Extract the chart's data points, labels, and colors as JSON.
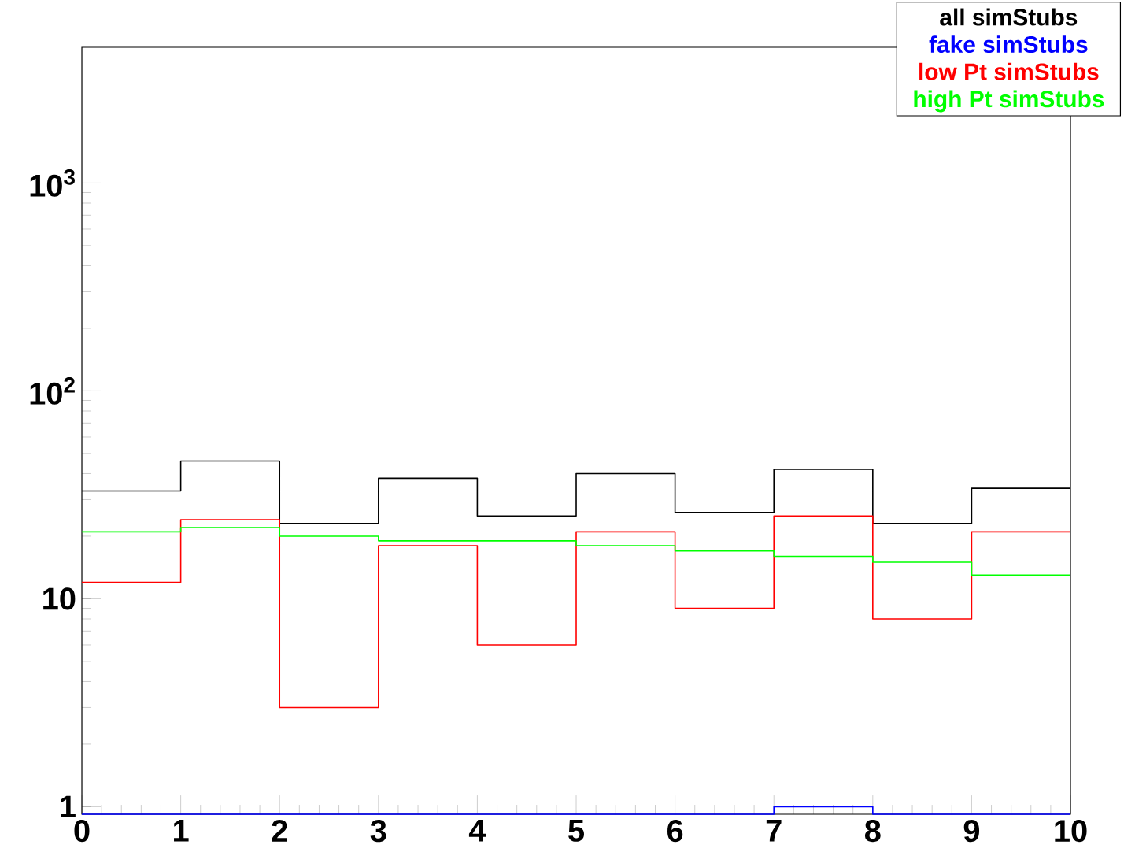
{
  "chart_data": {
    "type": "histogram",
    "bins": [
      0,
      1,
      2,
      3,
      4,
      5,
      6,
      7,
      8,
      9,
      10
    ],
    "log": "y",
    "legend": "top right",
    "xlim": [
      0,
      10
    ],
    "xticks": [
      0,
      1,
      2,
      3,
      4,
      5,
      6,
      7,
      8,
      9,
      10
    ],
    "ylim": [
      0.92,
      4500
    ],
    "yticks": [
      1,
      10,
      {
        "value": 100,
        "label": "10$^{2}$"
      },
      {
        "value": 1000,
        "label": "10$^{3}$"
      }
    ],
    "series": [
      {
        "name": "all simStubs",
        "color": "#000000",
        "values": [
          33,
          46,
          23,
          38,
          25,
          40,
          26,
          42,
          23,
          34
        ]
      },
      {
        "name": "fake simStubs",
        "color": "#0000ff",
        "values": [
          null,
          null,
          null,
          null,
          null,
          null,
          null,
          1,
          null,
          null
        ]
      },
      {
        "name": "low Pt simStubs",
        "color": "#ff0000",
        "values": [
          12,
          24,
          3,
          18,
          6,
          21,
          9,
          25,
          8,
          21
        ]
      },
      {
        "name": "high Pt simStubs",
        "color": "#00ff00",
        "values": [
          21,
          22,
          20,
          19,
          19,
          18,
          17,
          16,
          15,
          13
        ]
      }
    ]
  }
}
